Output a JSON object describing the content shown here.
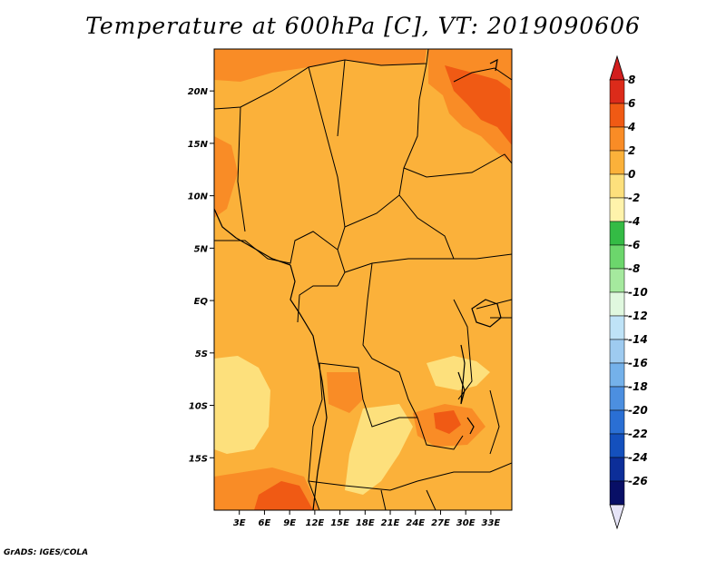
{
  "title": "Temperature at 600hPa [C], VT: 2019090606",
  "footer": "GrADS: IGES/COLA",
  "map": {
    "lat_range": [
      -20,
      24
    ],
    "lon_range": [
      0,
      35.5
    ],
    "lat_ticks": [
      {
        "value": 20,
        "label": "20N"
      },
      {
        "value": 15,
        "label": "15N"
      },
      {
        "value": 10,
        "label": "10N"
      },
      {
        "value": 5,
        "label": "5N"
      },
      {
        "value": 0,
        "label": "EQ"
      },
      {
        "value": -5,
        "label": "5S"
      },
      {
        "value": -10,
        "label": "10S"
      },
      {
        "value": -15,
        "label": "15S"
      }
    ],
    "lon_ticks": [
      {
        "value": 3,
        "label": "3E"
      },
      {
        "value": 6,
        "label": "6E"
      },
      {
        "value": 9,
        "label": "9E"
      },
      {
        "value": 12,
        "label": "12E"
      },
      {
        "value": 15,
        "label": "15E"
      },
      {
        "value": 18,
        "label": "18E"
      },
      {
        "value": 21,
        "label": "21E"
      },
      {
        "value": 24,
        "label": "24E"
      },
      {
        "value": 27,
        "label": "27E"
      },
      {
        "value": 30,
        "label": "30E"
      },
      {
        "value": 33,
        "label": "33E"
      }
    ],
    "background_color": "#fbb13a"
  },
  "colorbar": {
    "labels": [
      "8",
      "6",
      "4",
      "2",
      "0",
      "-2",
      "-4",
      "-6",
      "-8",
      "-10",
      "-12",
      "-14",
      "-16",
      "-18",
      "-20",
      "-22",
      "-24",
      "-26"
    ],
    "colors": [
      "#dc2b1a",
      "#f05a14",
      "#f98c26",
      "#fbb13a",
      "#fde07c",
      "#fff3ab",
      "#34bb45",
      "#6cd66c",
      "#a5e99e",
      "#e0f8df",
      "#bfe3f7",
      "#9ecbf0",
      "#74b1ea",
      "#4c8fe0",
      "#2a6fd4",
      "#1450bd",
      "#0c2e99",
      "#080f66"
    ],
    "lower_triangle_color": "#e6e4f7",
    "upper_triangle_color": "#d21e1e"
  }
}
